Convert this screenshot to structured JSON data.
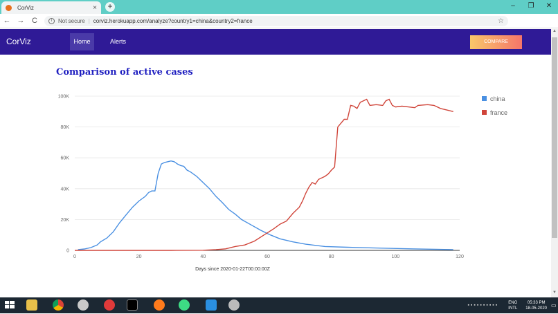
{
  "browser": {
    "tab_title": "CorViz",
    "tab_close": "×",
    "new_tab": "+",
    "back": "←",
    "forward": "→",
    "reload": "C",
    "security": "Not secure",
    "url": "corviz.herokuapp.com/analyze?country1=china&country2=france",
    "star": "☆",
    "menu": "⋮",
    "win_min": "–",
    "win_max": "❐",
    "win_close": "✕"
  },
  "navbar": {
    "brand": "CorViz",
    "home": "Home",
    "alerts": "Alerts",
    "compare": "COMPARE"
  },
  "chart_data": {
    "type": "line",
    "title": "Comparison of active cases",
    "xlabel": "Days since 2020-01-22T00:00:00Z",
    "ylabel": "",
    "xlim": [
      0,
      120
    ],
    "ylim": [
      0,
      100000
    ],
    "x_ticks": [
      0,
      20,
      40,
      60,
      80,
      100,
      120
    ],
    "x_tick_labels": [
      "0",
      "20",
      "40",
      "60",
      "80",
      "100",
      "120"
    ],
    "y_ticks": [
      0,
      20000,
      40000,
      60000,
      80000,
      100000
    ],
    "y_tick_labels": [
      "0",
      "20K",
      "40K",
      "60K",
      "80K",
      "100K"
    ],
    "grid": "horizontal",
    "legend_position": "right",
    "series": [
      {
        "name": "china",
        "color": "#4a90e2",
        "points": [
          [
            1,
            500
          ],
          [
            3,
            900
          ],
          [
            5,
            1800
          ],
          [
            7,
            3500
          ],
          [
            8,
            5500
          ],
          [
            10,
            8000
          ],
          [
            12,
            12000
          ],
          [
            14,
            18000
          ],
          [
            16,
            23000
          ],
          [
            18,
            28000
          ],
          [
            20,
            32000
          ],
          [
            22,
            35000
          ],
          [
            23,
            37500
          ],
          [
            24,
            38500
          ],
          [
            25,
            38500
          ],
          [
            26,
            50000
          ],
          [
            27,
            56000
          ],
          [
            28,
            57000
          ],
          [
            29,
            57500
          ],
          [
            30,
            58000
          ],
          [
            31,
            57500
          ],
          [
            32,
            56000
          ],
          [
            33,
            55000
          ],
          [
            34,
            54500
          ],
          [
            35,
            52000
          ],
          [
            36,
            51000
          ],
          [
            38,
            48000
          ],
          [
            40,
            44000
          ],
          [
            42,
            40000
          ],
          [
            44,
            35000
          ],
          [
            46,
            31000
          ],
          [
            48,
            26500
          ],
          [
            50,
            23500
          ],
          [
            52,
            20000
          ],
          [
            55,
            16500
          ],
          [
            58,
            13000
          ],
          [
            61,
            10000
          ],
          [
            64,
            7500
          ],
          [
            68,
            5500
          ],
          [
            72,
            4000
          ],
          [
            78,
            2500
          ],
          [
            85,
            2000
          ],
          [
            95,
            1500
          ],
          [
            105,
            1000
          ],
          [
            118,
            500
          ]
        ]
      },
      {
        "name": "france",
        "color": "#d0453a",
        "points": [
          [
            0,
            0
          ],
          [
            30,
            0
          ],
          [
            40,
            100
          ],
          [
            44,
            500
          ],
          [
            47,
            1000
          ],
          [
            50,
            2500
          ],
          [
            53,
            3500
          ],
          [
            56,
            6000
          ],
          [
            59,
            10000
          ],
          [
            62,
            14000
          ],
          [
            64,
            17000
          ],
          [
            66,
            19000
          ],
          [
            68,
            24000
          ],
          [
            70,
            28000
          ],
          [
            71,
            32000
          ],
          [
            72,
            37000
          ],
          [
            73,
            41000
          ],
          [
            74,
            44000
          ],
          [
            75,
            43000
          ],
          [
            76,
            46000
          ],
          [
            78,
            48000
          ],
          [
            79,
            49500
          ],
          [
            80,
            52000
          ],
          [
            81,
            54000
          ],
          [
            82,
            80000
          ],
          [
            84,
            85000
          ],
          [
            85,
            85000
          ],
          [
            86,
            94000
          ],
          [
            87,
            93500
          ],
          [
            88,
            92000
          ],
          [
            89,
            96000
          ],
          [
            90,
            97000
          ],
          [
            91,
            98000
          ],
          [
            92,
            94000
          ],
          [
            94,
            94500
          ],
          [
            96,
            94000
          ],
          [
            97,
            97000
          ],
          [
            98,
            98000
          ],
          [
            99,
            94000
          ],
          [
            100,
            93000
          ],
          [
            102,
            93500
          ],
          [
            104,
            93000
          ],
          [
            106,
            92500
          ],
          [
            107,
            94000
          ],
          [
            110,
            94500
          ],
          [
            112,
            94000
          ],
          [
            114,
            92000
          ],
          [
            116,
            91000
          ],
          [
            118,
            90000
          ]
        ]
      }
    ]
  },
  "taskbar": {
    "lang_top": "ENG",
    "lang_bottom": "INTL",
    "time": "05:33 PM",
    "date": "18-05-2020"
  }
}
